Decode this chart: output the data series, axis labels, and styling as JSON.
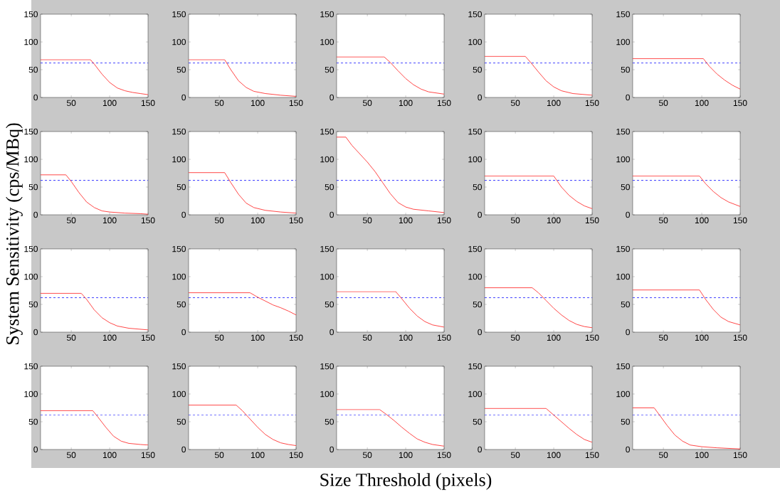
{
  "chart_data": [
    {
      "type": "line",
      "x": [
        10,
        75,
        80,
        90,
        100,
        110,
        120,
        130,
        140,
        150
      ],
      "series": [
        {
          "color": "#ff3333",
          "values": [
            68,
            68,
            60,
            42,
            27,
            17,
            12,
            9,
            7,
            5
          ]
        }
      ],
      "xlim": [
        10,
        150
      ],
      "ylim": [
        0,
        150
      ],
      "xticks": [
        50,
        100,
        150
      ],
      "yticks": [
        0,
        50,
        100,
        150
      ],
      "ref_lines": [
        {
          "axis": "y",
          "value": 62,
          "color": "#0000ff",
          "line_style": "dashed"
        }
      ]
    },
    {
      "type": "line",
      "x": [
        10,
        57,
        65,
        75,
        85,
        95,
        110,
        130,
        150
      ],
      "series": [
        {
          "color": "#ff3333",
          "values": [
            68,
            68,
            50,
            30,
            18,
            11,
            7,
            4,
            2
          ]
        }
      ],
      "xlim": [
        10,
        150
      ],
      "ylim": [
        0,
        150
      ],
      "xticks": [
        50,
        100,
        150
      ],
      "yticks": [
        0,
        50,
        100,
        150
      ],
      "ref_lines": [
        {
          "axis": "y",
          "value": 62,
          "color": "#0000ff",
          "line_style": "dashed"
        }
      ]
    },
    {
      "type": "line",
      "x": [
        10,
        72,
        80,
        90,
        100,
        110,
        120,
        130,
        140,
        150
      ],
      "series": [
        {
          "color": "#ff3333",
          "values": [
            73,
            73,
            63,
            48,
            34,
            23,
            15,
            10,
            8,
            6
          ]
        }
      ],
      "xlim": [
        10,
        150
      ],
      "ylim": [
        0,
        150
      ],
      "xticks": [
        50,
        100,
        150
      ],
      "yticks": [
        0,
        50,
        100,
        150
      ],
      "ref_lines": [
        {
          "axis": "y",
          "value": 62,
          "color": "#0000ff",
          "line_style": "dashed"
        }
      ]
    },
    {
      "type": "line",
      "x": [
        10,
        63,
        70,
        80,
        90,
        100,
        110,
        125,
        150
      ],
      "series": [
        {
          "color": "#ff3333",
          "values": [
            74,
            74,
            63,
            46,
            30,
            19,
            12,
            7,
            4
          ]
        }
      ],
      "xlim": [
        10,
        150
      ],
      "ylim": [
        0,
        150
      ],
      "xticks": [
        50,
        100,
        150
      ],
      "yticks": [
        0,
        50,
        100,
        150
      ],
      "ref_lines": [
        {
          "axis": "y",
          "value": 62,
          "color": "#0000ff",
          "line_style": "dashed"
        }
      ]
    },
    {
      "type": "line",
      "x": [
        10,
        102,
        110,
        120,
        130,
        140,
        150
      ],
      "series": [
        {
          "color": "#ff3333",
          "values": [
            70,
            70,
            56,
            42,
            31,
            22,
            15
          ]
        }
      ],
      "xlim": [
        10,
        150
      ],
      "ylim": [
        0,
        150
      ],
      "xticks": [
        50,
        100,
        150
      ],
      "yticks": [
        0,
        50,
        100,
        150
      ],
      "ref_lines": [
        {
          "axis": "y",
          "value": 62,
          "color": "#0000ff",
          "line_style": "dashed"
        }
      ]
    },
    {
      "type": "line",
      "x": [
        10,
        43,
        50,
        60,
        70,
        80,
        90,
        100,
        120,
        140,
        150
      ],
      "series": [
        {
          "color": "#ff3333",
          "values": [
            72,
            72,
            60,
            40,
            23,
            13,
            7,
            5,
            3,
            2,
            1
          ]
        }
      ],
      "xlim": [
        10,
        150
      ],
      "ylim": [
        0,
        150
      ],
      "xticks": [
        50,
        100,
        150
      ],
      "yticks": [
        0,
        50,
        100,
        150
      ],
      "ref_lines": [
        {
          "axis": "y",
          "value": 62,
          "color": "#0000ff",
          "line_style": "dashed"
        }
      ]
    },
    {
      "type": "line",
      "x": [
        10,
        57,
        65,
        75,
        85,
        95,
        110,
        130,
        150
      ],
      "series": [
        {
          "color": "#ff3333",
          "values": [
            76,
            76,
            58,
            37,
            21,
            13,
            8,
            5,
            3
          ]
        }
      ],
      "xlim": [
        10,
        150
      ],
      "ylim": [
        0,
        150
      ],
      "xticks": [
        50,
        100,
        150
      ],
      "yticks": [
        0,
        50,
        100,
        150
      ],
      "ref_lines": [
        {
          "axis": "y",
          "value": 62,
          "color": "#0000ff",
          "line_style": "dashed"
        }
      ]
    },
    {
      "type": "line",
      "x": [
        10,
        22,
        30,
        40,
        50,
        60,
        70,
        80,
        90,
        100,
        110,
        130,
        150
      ],
      "series": [
        {
          "color": "#ff3333",
          "values": [
            140,
            140,
            125,
            110,
            95,
            78,
            58,
            38,
            22,
            14,
            10,
            7,
            4
          ]
        }
      ],
      "xlim": [
        10,
        150
      ],
      "ylim": [
        0,
        150
      ],
      "xticks": [
        50,
        100,
        150
      ],
      "yticks": [
        0,
        50,
        100,
        150
      ],
      "ref_lines": [
        {
          "axis": "y",
          "value": 62,
          "color": "#0000ff",
          "line_style": "dashed"
        }
      ]
    },
    {
      "type": "line",
      "x": [
        10,
        100,
        110,
        120,
        130,
        140,
        150
      ],
      "series": [
        {
          "color": "#ff3333",
          "values": [
            70,
            70,
            50,
            35,
            24,
            16,
            11
          ]
        }
      ],
      "xlim": [
        10,
        150
      ],
      "ylim": [
        0,
        150
      ],
      "xticks": [
        50,
        100,
        150
      ],
      "yticks": [
        0,
        50,
        100,
        150
      ],
      "ref_lines": [
        {
          "axis": "y",
          "value": 62,
          "color": "#0000ff",
          "line_style": "dashed"
        }
      ]
    },
    {
      "type": "line",
      "x": [
        10,
        97,
        105,
        115,
        125,
        135,
        150
      ],
      "series": [
        {
          "color": "#ff3333",
          "values": [
            70,
            70,
            56,
            42,
            31,
            23,
            15
          ]
        }
      ],
      "xlim": [
        10,
        150
      ],
      "ylim": [
        0,
        150
      ],
      "xticks": [
        50,
        100,
        150
      ],
      "yticks": [
        0,
        50,
        100,
        150
      ],
      "ref_lines": [
        {
          "axis": "y",
          "value": 62,
          "color": "#0000ff",
          "line_style": "dashed"
        }
      ]
    },
    {
      "type": "line",
      "x": [
        10,
        63,
        70,
        80,
        90,
        100,
        110,
        125,
        150
      ],
      "series": [
        {
          "color": "#ff3333",
          "values": [
            70,
            70,
            59,
            40,
            26,
            17,
            11,
            7,
            4
          ]
        }
      ],
      "xlim": [
        10,
        150
      ],
      "ylim": [
        0,
        150
      ],
      "xticks": [
        50,
        100,
        150
      ],
      "yticks": [
        0,
        50,
        100,
        150
      ],
      "ref_lines": [
        {
          "axis": "y",
          "value": 62,
          "color": "#0000ff",
          "line_style": "dashed"
        }
      ]
    },
    {
      "type": "line",
      "x": [
        10,
        90,
        100,
        110,
        120,
        130,
        140,
        150
      ],
      "series": [
        {
          "color": "#ff3333",
          "values": [
            71,
            71,
            63,
            56,
            49,
            44,
            38,
            31
          ]
        }
      ],
      "xlim": [
        10,
        150
      ],
      "ylim": [
        0,
        150
      ],
      "xticks": [
        50,
        100,
        150
      ],
      "yticks": [
        0,
        50,
        100,
        150
      ],
      "ref_lines": [
        {
          "axis": "y",
          "value": 62,
          "color": "#0000ff",
          "line_style": "dashed"
        }
      ]
    },
    {
      "type": "line",
      "x": [
        10,
        87,
        95,
        105,
        115,
        125,
        135,
        150
      ],
      "series": [
        {
          "color": "#ff3333",
          "values": [
            73,
            73,
            60,
            43,
            29,
            19,
            13,
            9
          ]
        }
      ],
      "xlim": [
        10,
        150
      ],
      "ylim": [
        0,
        150
      ],
      "xticks": [
        50,
        100,
        150
      ],
      "yticks": [
        0,
        50,
        100,
        150
      ],
      "ref_lines": [
        {
          "axis": "y",
          "value": 62,
          "color": "#0000ff",
          "line_style": "dashed"
        }
      ]
    },
    {
      "type": "line",
      "x": [
        10,
        72,
        80,
        90,
        100,
        110,
        120,
        130,
        140,
        150
      ],
      "series": [
        {
          "color": "#ff3333",
          "values": [
            80,
            80,
            71,
            57,
            43,
            31,
            21,
            14,
            10,
            8
          ]
        }
      ],
      "xlim": [
        10,
        150
      ],
      "ylim": [
        0,
        150
      ],
      "xticks": [
        50,
        100,
        150
      ],
      "yticks": [
        0,
        50,
        100,
        150
      ],
      "ref_lines": [
        {
          "axis": "y",
          "value": 62,
          "color": "#0000ff",
          "line_style": "dashed"
        }
      ]
    },
    {
      "type": "line",
      "x": [
        10,
        97,
        105,
        115,
        125,
        135,
        150
      ],
      "series": [
        {
          "color": "#ff3333",
          "values": [
            76,
            76,
            59,
            41,
            27,
            19,
            13
          ]
        }
      ],
      "xlim": [
        10,
        150
      ],
      "ylim": [
        0,
        150
      ],
      "xticks": [
        50,
        100,
        150
      ],
      "yticks": [
        0,
        50,
        100,
        150
      ],
      "ref_lines": [
        {
          "axis": "y",
          "value": 62,
          "color": "#0000ff",
          "line_style": "dashed"
        }
      ]
    },
    {
      "type": "line",
      "x": [
        10,
        78,
        85,
        95,
        105,
        115,
        125,
        140,
        150
      ],
      "series": [
        {
          "color": "#ff3333",
          "values": [
            70,
            70,
            58,
            40,
            24,
            15,
            11,
            9,
            8
          ]
        }
      ],
      "xlim": [
        10,
        150
      ],
      "ylim": [
        0,
        150
      ],
      "xticks": [
        50,
        100,
        150
      ],
      "yticks": [
        0,
        50,
        100,
        150
      ],
      "ref_lines": [
        {
          "axis": "y",
          "value": 62,
          "color": "#0000ff",
          "line_style": "dashed"
        }
      ]
    },
    {
      "type": "line",
      "x": [
        10,
        72,
        80,
        90,
        100,
        110,
        120,
        130,
        140,
        150
      ],
      "series": [
        {
          "color": "#ff3333",
          "values": [
            80,
            80,
            70,
            55,
            40,
            27,
            18,
            12,
            9,
            7
          ]
        }
      ],
      "xlim": [
        10,
        150
      ],
      "ylim": [
        0,
        150
      ],
      "xticks": [
        50,
        100,
        150
      ],
      "yticks": [
        0,
        50,
        100,
        150
      ],
      "ref_lines": [
        {
          "axis": "y",
          "value": 62,
          "color": "#0000ff",
          "line_style": "dashed"
        }
      ]
    },
    {
      "type": "line",
      "x": [
        10,
        66,
        75,
        85,
        95,
        105,
        115,
        125,
        135,
        150
      ],
      "series": [
        {
          "color": "#ff3333",
          "values": [
            72,
            72,
            63,
            52,
            40,
            29,
            19,
            13,
            9,
            6
          ]
        }
      ],
      "xlim": [
        10,
        150
      ],
      "ylim": [
        0,
        150
      ],
      "xticks": [
        50,
        100,
        150
      ],
      "yticks": [
        0,
        50,
        100,
        150
      ],
      "ref_lines": [
        {
          "axis": "y",
          "value": 62,
          "color": "#0000ff",
          "line_style": "dashed"
        }
      ]
    },
    {
      "type": "line",
      "x": [
        10,
        90,
        100,
        110,
        120,
        130,
        140,
        150
      ],
      "series": [
        {
          "color": "#ff3333",
          "values": [
            74,
            74,
            62,
            50,
            38,
            27,
            18,
            13
          ]
        }
      ],
      "xlim": [
        10,
        150
      ],
      "ylim": [
        0,
        150
      ],
      "xticks": [
        50,
        100,
        150
      ],
      "yticks": [
        0,
        50,
        100,
        150
      ],
      "ref_lines": [
        {
          "axis": "y",
          "value": 62,
          "color": "#0000ff",
          "line_style": "dashed"
        }
      ]
    },
    {
      "type": "line",
      "x": [
        10,
        38,
        45,
        55,
        65,
        75,
        85,
        100,
        120,
        150
      ],
      "series": [
        {
          "color": "#ff3333",
          "values": [
            75,
            75,
            62,
            43,
            26,
            15,
            8,
            5,
            3,
            1
          ]
        }
      ],
      "xlim": [
        10,
        150
      ],
      "ylim": [
        0,
        150
      ],
      "xticks": [
        50,
        100,
        150
      ],
      "yticks": [
        0,
        50,
        100,
        150
      ],
      "ref_lines": [
        {
          "axis": "y",
          "value": 62,
          "color": "#0000ff",
          "line_style": "dashed"
        }
      ]
    },
    {
      "type": "other",
      "xlabel": "Size Threshold (pixels)",
      "ylabel": "System Sensitivity (cps/MBq)"
    }
  ]
}
